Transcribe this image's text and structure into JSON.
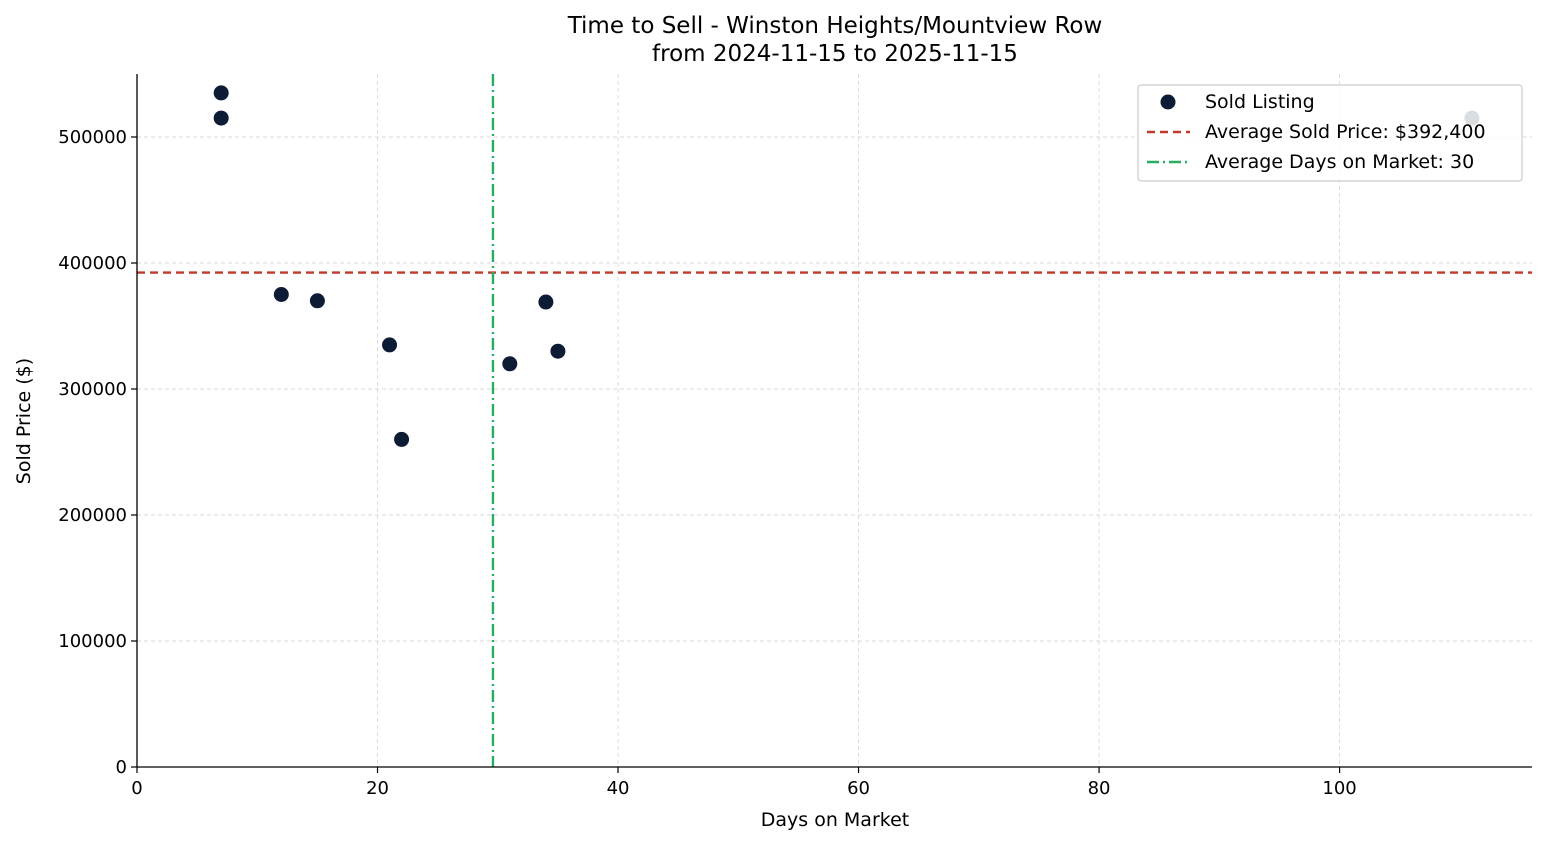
{
  "chart_data": {
    "type": "scatter",
    "title": "Time to Sell - Winston Heights/Mountview Row",
    "subtitle": "from 2024-11-15 to 2025-11-15",
    "xlabel": "Days on Market",
    "ylabel": "Sold Price ($)",
    "xlim": [
      0,
      116
    ],
    "ylim": [
      0,
      550000
    ],
    "xticks": [
      0,
      20,
      40,
      60,
      80,
      100
    ],
    "yticks": [
      0,
      100000,
      200000,
      300000,
      400000,
      500000
    ],
    "xtick_labels": [
      "0",
      "20",
      "40",
      "60",
      "80",
      "100"
    ],
    "ytick_labels": [
      "0",
      "100000",
      "200000",
      "300000",
      "400000",
      "500000"
    ],
    "grid": true,
    "legend_position": "top-right",
    "series": [
      {
        "name": "Sold Listing",
        "color": "#0d1b35",
        "points": [
          {
            "x": 7,
            "y": 535000
          },
          {
            "x": 7,
            "y": 515000
          },
          {
            "x": 12,
            "y": 375000
          },
          {
            "x": 15,
            "y": 370000
          },
          {
            "x": 21,
            "y": 335000
          },
          {
            "x": 22,
            "y": 260000
          },
          {
            "x": 31,
            "y": 320000
          },
          {
            "x": 34,
            "y": 369000
          },
          {
            "x": 35,
            "y": 330000
          },
          {
            "x": 111,
            "y": 515000
          }
        ]
      }
    ],
    "reference_lines": [
      {
        "name": "Average Sold Price: $392,400",
        "orientation": "horizontal",
        "value": 392400,
        "color": "#c0392b",
        "style": "dashed"
      },
      {
        "name": "Average Days on Market: 30",
        "orientation": "vertical",
        "value": 29.6,
        "color": "#27ae60",
        "style": "dashdot"
      }
    ]
  }
}
